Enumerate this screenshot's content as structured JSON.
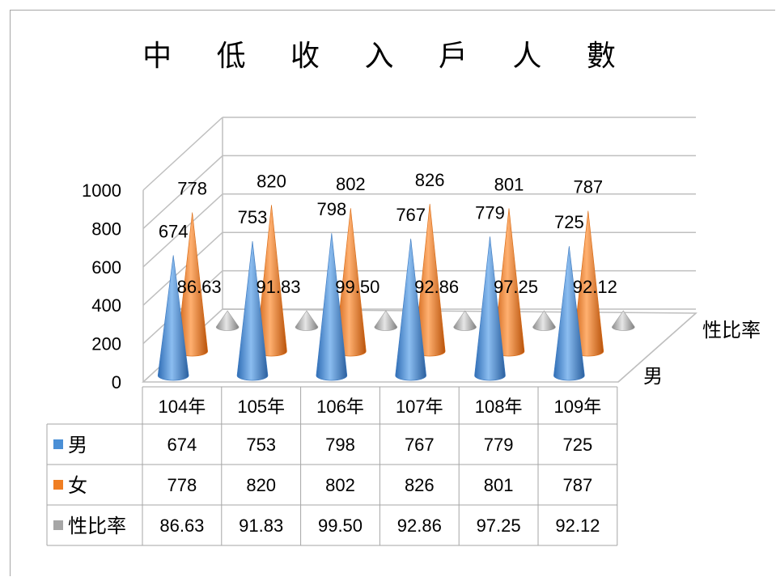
{
  "chart_data": {
    "type": "bar",
    "title": "中 低 收 入 戶 人 數",
    "categories": [
      "104年",
      "105年",
      "106年",
      "107年",
      "108年",
      "109年"
    ],
    "series": [
      {
        "name": "男",
        "values": [
          674,
          753,
          798,
          767,
          779,
          725
        ],
        "color": "#4a8fd6",
        "labels": [
          "674",
          "753",
          "798",
          "767",
          "779",
          "725"
        ]
      },
      {
        "name": "女",
        "values": [
          778,
          820,
          802,
          826,
          801,
          787
        ],
        "color": "#f07e22",
        "labels": [
          "778",
          "820",
          "802",
          "826",
          "801",
          "787"
        ]
      },
      {
        "name": "性比率",
        "values": [
          86.63,
          91.83,
          99.5,
          92.86,
          97.25,
          92.12
        ],
        "color": "#a6a6a6",
        "labels": [
          "86.63",
          "91.83",
          "99.50",
          "92.86",
          "97.25",
          "92.12"
        ]
      }
    ],
    "yticks": [
      "0",
      "200",
      "400",
      "600",
      "800",
      "1000"
    ],
    "ylim": [
      0,
      1000
    ],
    "depth_axis_labels": [
      "男",
      "性比率"
    ],
    "mark_shape": "cone",
    "legend": "data-table",
    "grid": true
  }
}
